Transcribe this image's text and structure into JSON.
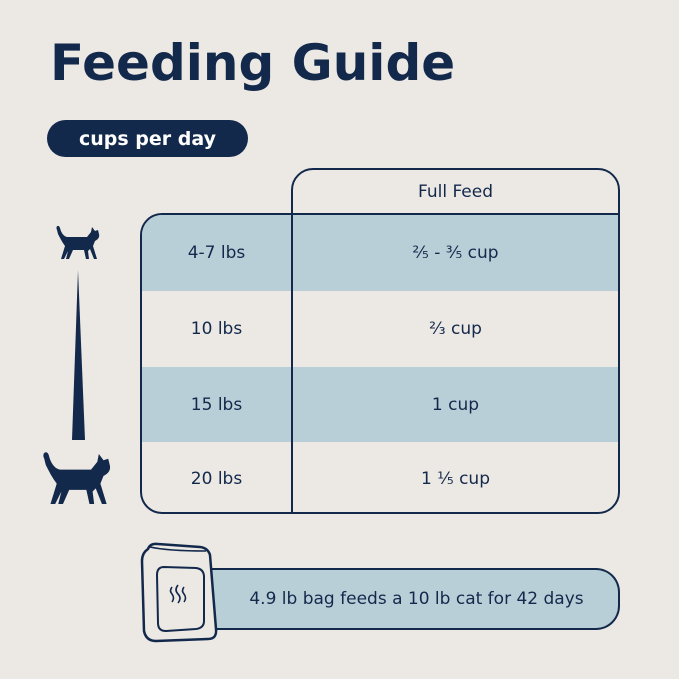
{
  "title": "Feeding Guide",
  "unit_pill": "cups per day",
  "table": {
    "column_header": "Full Feed",
    "rows": [
      {
        "weight": "4-7 lbs",
        "amount": "²⁄₅ - ³⁄₅ cup"
      },
      {
        "weight": "10 lbs",
        "amount": "²⁄₃ cup"
      },
      {
        "weight": "15 lbs",
        "amount": "1 cup"
      },
      {
        "weight": "20 lbs",
        "amount": "1 ¹⁄₅ cup"
      }
    ]
  },
  "bag_note": "4.9 lb bag feeds a 10 lb cat for 42 days",
  "icons": [
    "small-cat-icon",
    "size-wedge-icon",
    "large-cat-icon",
    "food-bag-icon"
  ],
  "colors": {
    "navy": "#13294b",
    "light_blue": "#b9cfd8",
    "background": "#ece8e4"
  }
}
